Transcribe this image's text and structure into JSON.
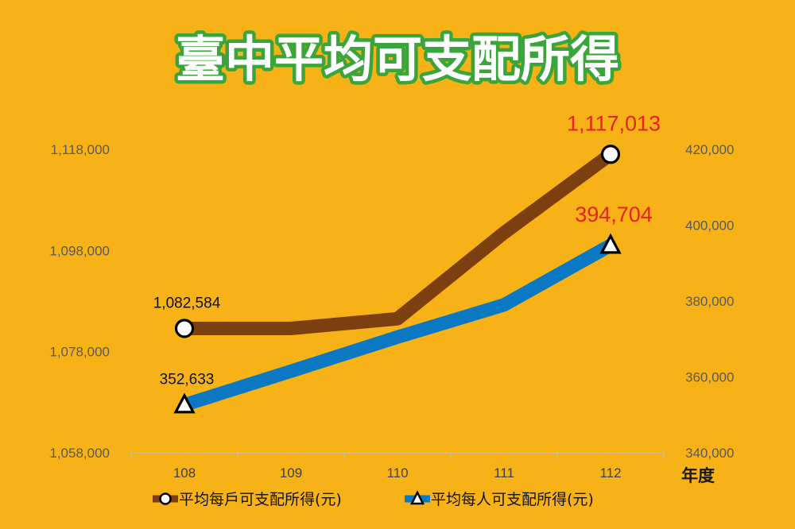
{
  "title": "臺中平均可支配所得",
  "chart_data": {
    "type": "line",
    "categories": [
      "108",
      "109",
      "110",
      "111",
      "112"
    ],
    "xlabel": "年度",
    "left_axis": {
      "ticks": [
        "1,118,000",
        "1,098,000",
        "1,078,000",
        "1,058,000"
      ],
      "range": [
        1058000,
        1118000
      ]
    },
    "right_axis": {
      "ticks": [
        "420,000",
        "400,000",
        "380,000",
        "360,000",
        "340,000"
      ],
      "range": [
        340000,
        420000
      ]
    },
    "series": [
      {
        "name": "平均每戶可支配所得(元)",
        "axis": "left",
        "values": [
          1082584,
          1082584,
          1084500,
          1101500,
          1117013
        ],
        "color": "#7B3F10",
        "marker": "circle",
        "end_labels": {
          "first": "1,082,584",
          "last": "1,117,013"
        }
      },
      {
        "name": "平均每人可支配所得(元)",
        "axis": "right",
        "values": [
          352633,
          361500,
          370500,
          379000,
          394704
        ],
        "color": "#0A78C2",
        "marker": "triangle",
        "end_labels": {
          "first": "352,633",
          "last": "394,704"
        }
      }
    ],
    "grid": false,
    "legend_position": "bottom"
  }
}
